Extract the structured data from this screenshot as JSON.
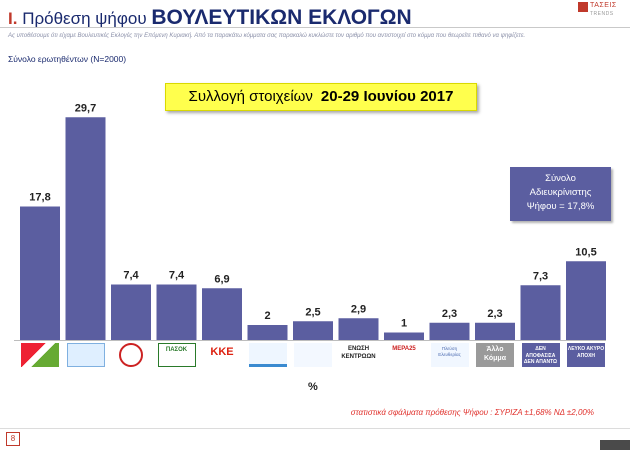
{
  "header": {
    "prefix": "I.",
    "title_normal": "Πρόθεση ψήφου",
    "title_big": "ΒΟΥΛΕΥΤΙΚΩΝ ΕΚΛΟΓΩΝ",
    "note": "Ας υποθέσουμε ότι είχαμε Βουλευτικές Εκλογές την Επόμενη Κυριακή. Από τα παρακάτω κόμματα σας παρακαλώ κυκλώστε τον αριθμό που αντιστοιχεί στο κόμμα που θεωρείτε πιθανό να ψηφίζετε.",
    "sample": "Σύνολο ερωτηθέντων (Ν=2000)",
    "logo_name": "ΤΑΣΕΙΣ",
    "logo_sub": "TRENDS"
  },
  "collection": {
    "label": "Συλλογή στοιχείων",
    "dates": "20-29 Ιουνίου 2017"
  },
  "undecided_box": {
    "line1": "Σύνολο",
    "line2": "Αδιευκρίνιστης",
    "line3": "Ψήφου = 17,8%"
  },
  "chart_data": {
    "type": "bar",
    "categories": [
      "",
      "",
      "",
      "",
      "",
      "",
      "",
      "",
      "",
      "",
      "",
      "ΔΕΝ ΑΠΟΦΑΣΙΣΑ ΔΕΝ ΑΠΑΝΤΩ",
      "ΛΕΥΚΟ ΑΚΥΡΟ ΑΠΟΧΗ"
    ],
    "values": [
      17.8,
      29.7,
      7.4,
      7.4,
      6.9,
      2,
      2.5,
      2.9,
      1,
      2.3,
      2.3,
      7.3,
      10.5
    ],
    "value_labels": [
      "17,8",
      "29,7",
      "7,4",
      "7,4",
      "6,9",
      "2",
      "2,5",
      "2,9",
      "1",
      "2,3",
      "2,3",
      "7,3",
      "10,5"
    ],
    "xlabel": "%",
    "ylim": [
      0,
      32
    ],
    "bar_color": "#5b5ea0",
    "grid": false
  },
  "party_logos": [
    {
      "icon": "syriza-logo-icon",
      "text": ""
    },
    {
      "icon": "nd-logo-icon",
      "text": ""
    },
    {
      "icon": "golden-dawn-logo-icon",
      "text": ""
    },
    {
      "icon": "pasok-logo-icon",
      "text": "ΠΑΣΟΚ"
    },
    {
      "icon": "kke-logo-icon",
      "text": "KKE"
    },
    {
      "icon": "potami-logo-icon",
      "text": ""
    },
    {
      "icon": "anel-logo-icon",
      "text": ""
    },
    {
      "icon": "enosi-kentroon-logo-icon",
      "text": "ΕΝΩΣΗ ΚΕΝΤΡΩΩΝ"
    },
    {
      "icon": "mera25-logo-icon",
      "text": "ΜΕΡΑ25"
    },
    {
      "icon": "plefsi-logo-icon",
      "text": "Πλεύση Ελευθερίας"
    },
    {
      "icon": "other-party-icon",
      "text": "Άλλο Κόμμα"
    },
    {
      "icon": "undecided-label-icon",
      "text": "ΔΕΝ ΑΠΟΦΑΣΙΣΑ ΔΕΝ ΑΠΑΝΤΩ"
    },
    {
      "icon": "blank-label-icon",
      "text": "ΛΕΥΚΟ ΑΚΥΡΟ ΑΠΟΧΗ"
    }
  ],
  "error_note": "στατιστικά σφάλματα πρόθεσης Ψήφου : ΣΥΡΙΖΑ ±1,68% ΝΔ ±2,00%",
  "page_number": "8",
  "colors": {
    "bar": "#5b5ea0",
    "title": "#1a2a6e",
    "accent": "#c0392b",
    "highlight": "#ffff4d",
    "error_note": "#e0302b"
  }
}
